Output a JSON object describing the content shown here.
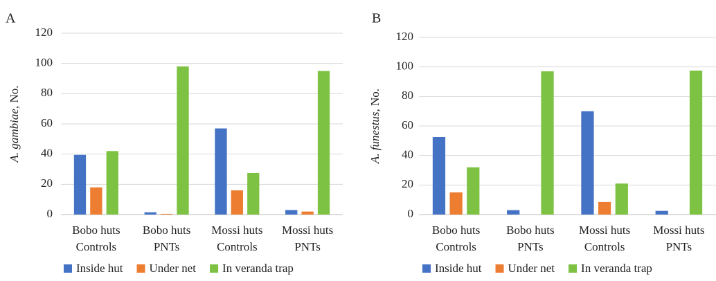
{
  "chart_data": [
    {
      "type": "bar",
      "panel": "A",
      "ylabel": [
        "A. gambiae",
        ", No."
      ],
      "categories": [
        [
          "Bobo huts",
          "Controls"
        ],
        [
          "Bobo huts",
          "PNTs"
        ],
        [
          "Mossi huts",
          "Controls"
        ],
        [
          "Mossi huts",
          "PNTs"
        ]
      ],
      "series": [
        {
          "name": "Inside hut",
          "color": "#4472c4",
          "values": [
            39.5,
            1.5,
            57,
            3
          ]
        },
        {
          "name": "Under net",
          "color": "#ed7d31",
          "values": [
            18,
            0.5,
            16,
            2
          ]
        },
        {
          "name": "In veranda trap",
          "color": "#7dc243",
          "values": [
            42,
            98,
            27.5,
            95
          ]
        }
      ],
      "ylim": [
        0,
        120
      ],
      "yticks": [
        0,
        20,
        40,
        60,
        80,
        100,
        120
      ],
      "grid": true
    },
    {
      "type": "bar",
      "panel": "B",
      "ylabel": [
        "A. funestus",
        ", No."
      ],
      "categories": [
        [
          "Bobo huts",
          "Controls"
        ],
        [
          "Bobo huts",
          "PNTs"
        ],
        [
          "Mossi huts",
          "Controls"
        ],
        [
          "Mossi huts",
          "PNTs"
        ]
      ],
      "series": [
        {
          "name": "Inside hut",
          "color": "#4472c4",
          "values": [
            52.5,
            3,
            70,
            2.5
          ]
        },
        {
          "name": "Under net",
          "color": "#ed7d31",
          "values": [
            15,
            0,
            8.5,
            0
          ]
        },
        {
          "name": "In veranda trap",
          "color": "#7dc243",
          "values": [
            32,
            97,
            21,
            97.5
          ]
        }
      ],
      "ylim": [
        0,
        120
      ],
      "yticks": [
        0,
        20,
        40,
        60,
        80,
        100,
        120
      ],
      "grid": true
    }
  ]
}
